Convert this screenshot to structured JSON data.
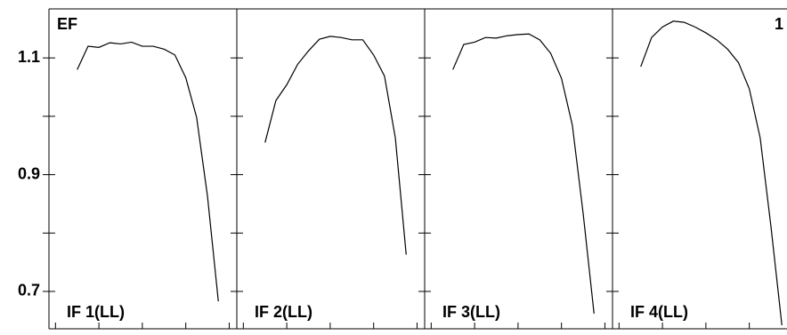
{
  "chart_data": {
    "type": "line",
    "ylabel": "EF",
    "annotation": "1",
    "x": [
      3,
      4,
      5,
      6,
      7,
      8,
      9,
      10,
      11,
      12,
      13,
      14,
      15,
      16
    ],
    "xlim": [
      0.4,
      17.7
    ],
    "xminorticks": [
      1,
      5,
      9,
      13,
      17
    ],
    "ylim": [
      0.636,
      1.184
    ],
    "yticks": [
      0.7,
      0.9,
      1.1
    ],
    "yminorticks": [
      0.8,
      1.0
    ],
    "series": [
      {
        "name": "IF 1(LL)",
        "color": "#000000",
        "values": [
          1.08,
          1.12,
          1.118,
          1.126,
          1.124,
          1.127,
          1.12,
          1.12,
          1.115,
          1.105,
          1.066,
          0.998,
          0.863,
          0.683
        ]
      },
      {
        "name": "IF 2(LL)",
        "color": "#000000",
        "values": [
          0.955,
          1.027,
          1.054,
          1.089,
          1.112,
          1.132,
          1.137,
          1.135,
          1.131,
          1.131,
          1.105,
          1.069,
          0.963,
          0.763
        ]
      },
      {
        "name": "IF 3(LL)",
        "color": "#000000",
        "values": [
          1.08,
          1.123,
          1.127,
          1.135,
          1.134,
          1.138,
          1.14,
          1.141,
          1.131,
          1.108,
          1.065,
          0.985,
          0.833,
          0.662
        ]
      },
      {
        "name": "IF 4(LL)",
        "color": "#000000",
        "values": [
          1.085,
          1.135,
          1.153,
          1.163,
          1.161,
          1.153,
          1.143,
          1.131,
          1.115,
          1.092,
          1.047,
          0.963,
          0.81,
          0.642
        ]
      }
    ]
  }
}
